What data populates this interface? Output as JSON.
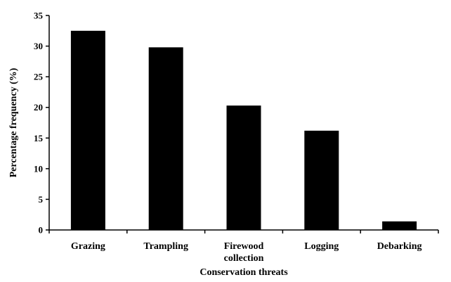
{
  "chart_data": {
    "type": "bar",
    "categories": [
      [
        "Grazing"
      ],
      [
        "Trampling"
      ],
      [
        "Firewood",
        "collection"
      ],
      [
        "Logging"
      ],
      [
        "Debarking"
      ]
    ],
    "values": [
      32.5,
      29.8,
      20.3,
      16.2,
      1.4
    ],
    "xlabel": "Conservation threats",
    "ylabel": "Percentage frequency (%)",
    "ylim": [
      0,
      35
    ],
    "yticks": [
      0,
      5,
      10,
      15,
      20,
      25,
      30,
      35
    ],
    "grid": false,
    "legend": "none",
    "bar_color": "#000000",
    "axis_color": "#000000"
  }
}
